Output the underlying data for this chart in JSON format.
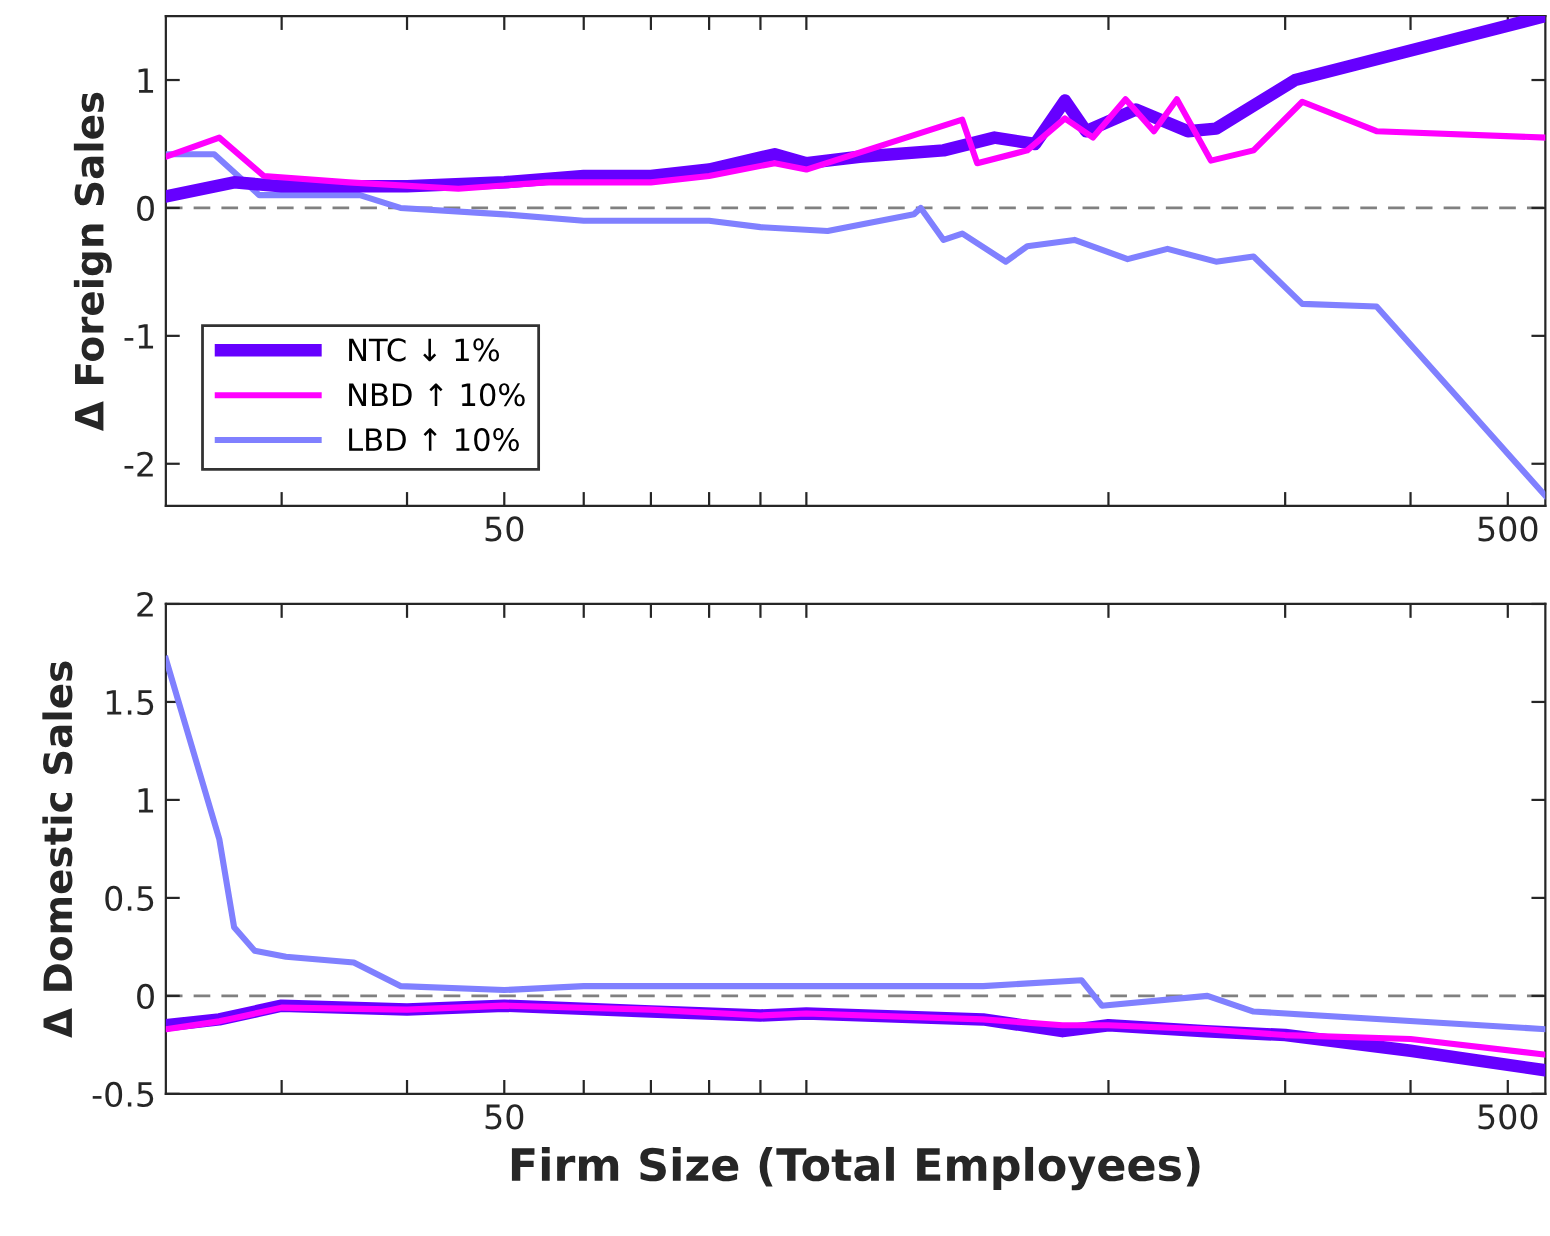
{
  "chart_data": [
    {
      "type": "line",
      "ylabel": "Δ Foreign Sales",
      "log": "x",
      "xlim": [
        23,
        545
      ],
      "ylim": [
        -2.33,
        1.5
      ],
      "xticks": [
        {
          "value": 30,
          "label": null
        },
        {
          "value": 40,
          "label": null
        },
        50,
        {
          "value": 60,
          "label": null
        },
        {
          "value": 70,
          "label": null
        },
        {
          "value": 80,
          "label": null
        },
        {
          "value": 90,
          "label": null
        },
        {
          "value": 100,
          "label": null
        },
        {
          "value": 200,
          "label": null
        },
        {
          "value": 300,
          "label": null
        },
        {
          "value": 400,
          "label": null
        },
        500
      ],
      "yticks": [
        {
          "value": -2,
          "label": "-2"
        },
        {
          "value": -1,
          "label": "-1"
        },
        0,
        1
      ],
      "legend": "lower left",
      "grid": false,
      "ref_lines": [
        {
          "axis": "y",
          "value": 0,
          "color": "#808080",
          "line_style": "dashed"
        }
      ],
      "series": [
        {
          "name": "NTC ↓ 1%",
          "color": "#6600ff",
          "x": [
            23,
            26.9,
            30,
            40,
            50,
            60,
            70,
            80,
            93,
            100,
            113,
            137,
            154,
            169,
            181,
            190,
            213,
            240,
            256,
            307,
            545
          ],
          "values": [
            0.09,
            0.2,
            0.17,
            0.17,
            0.2,
            0.25,
            0.25,
            0.3,
            0.42,
            0.35,
            0.4,
            0.45,
            0.55,
            0.5,
            0.84,
            0.6,
            0.77,
            0.6,
            0.62,
            1.0,
            1.5
          ]
        },
        {
          "name": "NBD ↑ 10%",
          "color": "#ff00ff",
          "x": [
            23,
            26,
            28.8,
            35,
            45,
            55,
            70,
            80,
            93,
            100,
            143,
            148,
            166,
            181,
            193,
            208,
            222,
            234,
            253,
            279,
            312,
            370,
            545
          ],
          "values": [
            0.4,
            0.55,
            0.25,
            0.2,
            0.15,
            0.2,
            0.2,
            0.25,
            0.35,
            0.3,
            0.69,
            0.35,
            0.45,
            0.7,
            0.55,
            0.85,
            0.6,
            0.85,
            0.37,
            0.45,
            0.83,
            0.6,
            0.55
          ]
        },
        {
          "name": "LBD ↑ 10%",
          "color": "#8080ff",
          "x": [
            23,
            25.7,
            28.5,
            35.9,
            39.4,
            50,
            60,
            80,
            90,
            105,
            128,
            130,
            137,
            143,
            158,
            166,
            185,
            209,
            229,
            256,
            279,
            312,
            370,
            545
          ],
          "values": [
            0.42,
            0.42,
            0.1,
            0.1,
            0.0,
            -0.05,
            -0.1,
            -0.1,
            -0.15,
            -0.18,
            -0.05,
            0.0,
            -0.25,
            -0.2,
            -0.42,
            -0.3,
            -0.25,
            -0.4,
            -0.32,
            -0.42,
            -0.38,
            -0.75,
            -0.77,
            -2.25
          ]
        }
      ]
    },
    {
      "type": "line",
      "xlabel": "Firm Size (Total Employees)",
      "ylabel": "Δ Domestic Sales",
      "log": "x",
      "xlim": [
        23,
        545
      ],
      "ylim": [
        -0.5,
        2
      ],
      "xticks": [
        {
          "value": 30,
          "label": null
        },
        {
          "value": 40,
          "label": null
        },
        50,
        {
          "value": 60,
          "label": null
        },
        {
          "value": 70,
          "label": null
        },
        {
          "value": 80,
          "label": null
        },
        {
          "value": 90,
          "label": null
        },
        {
          "value": 100,
          "label": null
        },
        {
          "value": 200,
          "label": null
        },
        {
          "value": 300,
          "label": null
        },
        {
          "value": 400,
          "label": null
        },
        500
      ],
      "yticks": [
        {
          "value": -0.5,
          "label": "-0.5"
        },
        0,
        0.5,
        1,
        1.5,
        2
      ],
      "legend": false,
      "grid": false,
      "ref_lines": [
        {
          "axis": "y",
          "value": 0,
          "color": "#808080",
          "line_style": "dashed"
        }
      ],
      "series": [
        {
          "color": "#6600ff",
          "x": [
            23,
            26,
            30,
            40,
            50,
            70,
            90,
            100,
            150,
            180,
            200,
            250,
            300,
            400,
            545
          ],
          "values": [
            -0.15,
            -0.12,
            -0.05,
            -0.07,
            -0.05,
            -0.08,
            -0.1,
            -0.09,
            -0.12,
            -0.18,
            -0.15,
            -0.18,
            -0.2,
            -0.28,
            -0.38
          ]
        },
        {
          "color": "#ff00ff",
          "x": [
            23,
            26,
            30,
            40,
            50,
            70,
            90,
            100,
            150,
            180,
            200,
            250,
            300,
            400,
            545
          ],
          "values": [
            -0.17,
            -0.13,
            -0.06,
            -0.07,
            -0.05,
            -0.07,
            -0.1,
            -0.09,
            -0.12,
            -0.15,
            -0.15,
            -0.17,
            -0.2,
            -0.22,
            -0.3
          ]
        },
        {
          "color": "#8080ff",
          "x": [
            23,
            26,
            26.9,
            28.2,
            30.3,
            35.4,
            39.4,
            50,
            60,
            80,
            100,
            150,
            188,
            197,
            251,
            279,
            545
          ],
          "values": [
            1.72,
            0.8,
            0.35,
            0.23,
            0.2,
            0.17,
            0.05,
            0.03,
            0.05,
            0.05,
            0.05,
            0.05,
            0.08,
            -0.05,
            0.0,
            -0.08,
            -0.17
          ]
        }
      ]
    }
  ]
}
